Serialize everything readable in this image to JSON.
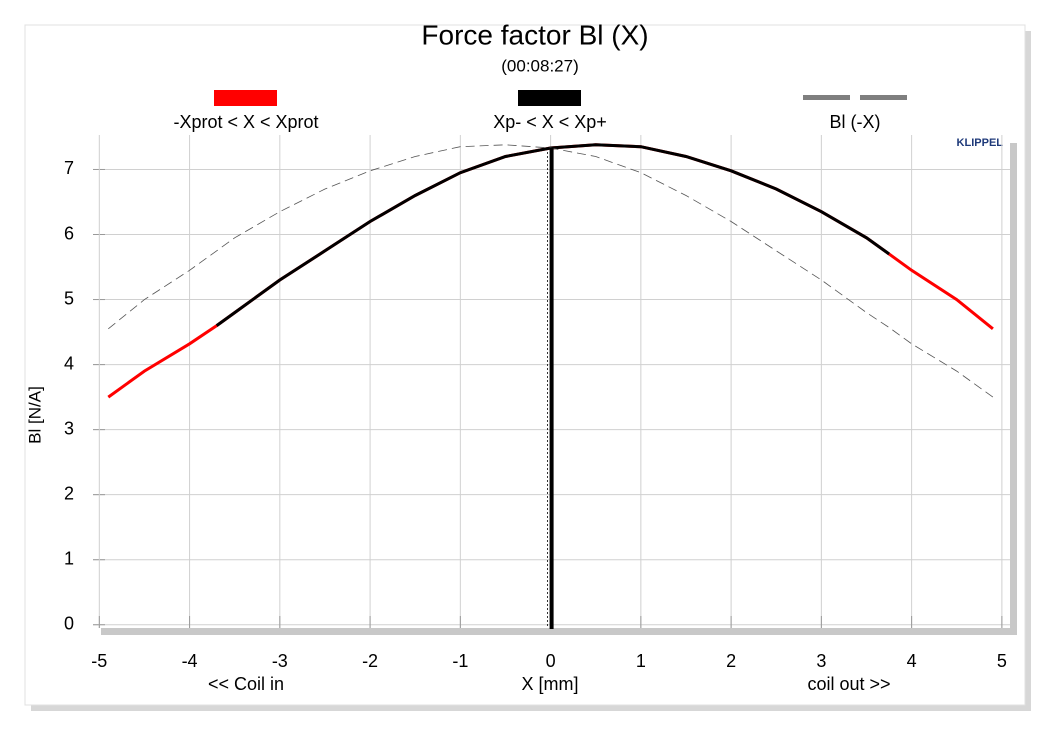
{
  "chart_data": {
    "type": "line",
    "title": "Force factor Bl (X)",
    "subtitle": "(00:08:27)",
    "brand": "KLIPPEL",
    "x_label": "X [mm]",
    "y_label": "Bl [N/A]",
    "annotations": [
      "<< Coil in",
      "coil out >>"
    ],
    "x": [
      -4.9,
      -4.5,
      -4,
      -3.7,
      -3.5,
      -3,
      -2.5,
      -2,
      -1.5,
      -1,
      -0.5,
      0,
      0.5,
      1,
      1.5,
      2,
      2.5,
      3,
      3.5,
      3.75,
      4,
      4.5,
      4.9
    ],
    "series": [
      {
        "name": "-Xprot < X < Xprot",
        "color": "#ff0000",
        "line_style": "solid",
        "values": [
          3.5,
          3.9,
          4.32,
          4.6,
          4.8,
          5.3,
          5.75,
          6.2,
          6.6,
          6.95,
          7.2,
          7.33,
          7.38,
          7.35,
          7.2,
          6.98,
          6.7,
          6.35,
          5.95,
          5.7,
          5.45,
          5.0,
          4.55
        ]
      },
      {
        "name": "Xp- < X < Xp+",
        "color": "#000000",
        "line_style": "solid",
        "values": [
          null,
          null,
          null,
          4.6,
          4.8,
          5.3,
          5.75,
          6.2,
          6.6,
          6.95,
          7.2,
          7.33,
          7.38,
          7.35,
          7.2,
          6.98,
          6.7,
          6.35,
          5.95,
          5.7,
          null,
          null,
          null
        ]
      },
      {
        "name": "Bl (-X)",
        "color": "#7f7f7f",
        "line_style": "dashed",
        "values": [
          4.55,
          5.0,
          5.45,
          5.75,
          5.95,
          6.35,
          6.7,
          6.98,
          7.2,
          7.35,
          7.38,
          7.33,
          7.2,
          6.95,
          6.6,
          6.2,
          5.75,
          5.3,
          4.8,
          4.57,
          4.32,
          3.9,
          3.5
        ]
      }
    ],
    "xlim": [
      -5.07,
      5.09
    ],
    "ylim": [
      -0.05,
      7.53
    ],
    "xticks": [
      -5,
      -4,
      -3,
      -2,
      -1,
      0,
      1,
      2,
      3,
      4,
      5
    ],
    "yticks": [
      0,
      1,
      2,
      3,
      4,
      5,
      6,
      7
    ],
    "grid": true
  }
}
